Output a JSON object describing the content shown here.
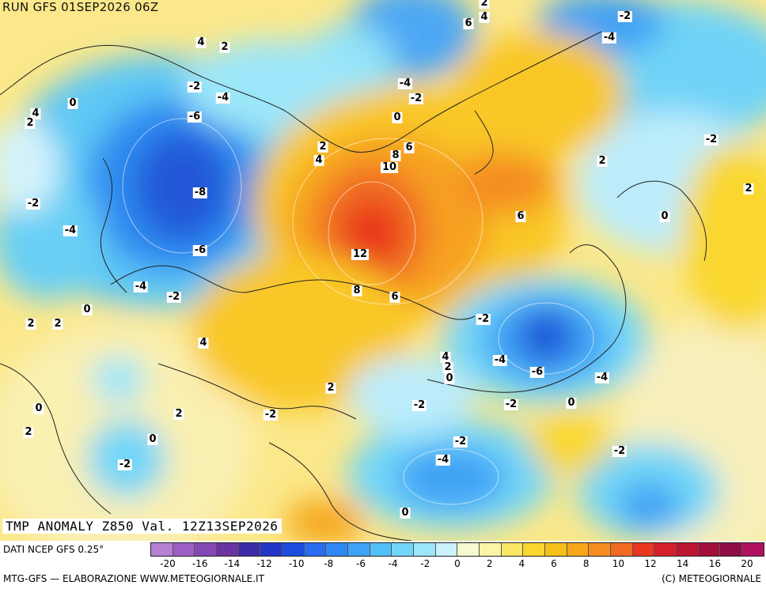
{
  "run_title": "RUN GFS 01SEP2026 06Z",
  "map_caption": "TMP ANOMALY Z850 Val. 12Z13SEP2026",
  "source_text": "DATI NCEP GFS 0.25°",
  "credit_left": "MTG-GFS — ELABORAZIONE WWW.METEOGIORNALE.IT",
  "credit_right": "(C) METEOGIORNALE",
  "legend": {
    "colors": [
      "#b57fd2",
      "#9d5fc4",
      "#8547b3",
      "#6b33a2",
      "#3d2ca8",
      "#2436c6",
      "#1b4ee0",
      "#2a6cf0",
      "#2f87f3",
      "#3fa2f5",
      "#53bff7",
      "#72d6f8",
      "#9ce6f9",
      "#c9f2fb",
      "#f6fbcf",
      "#fbf3a6",
      "#fbe665",
      "#f9d72f",
      "#f7c018",
      "#f6a81a",
      "#f48c20",
      "#f06a22",
      "#e9361f",
      "#d51f2b",
      "#bd1633",
      "#a50f3b",
      "#8f0d45",
      "#b0105e"
    ],
    "ticks": [
      "-20",
      "-16",
      "-14",
      "-12",
      "-10",
      "-8",
      "-6",
      "-4",
      "-2",
      "0",
      "2",
      "4",
      "6",
      "8",
      "10",
      "12",
      "14",
      "16",
      "20"
    ]
  },
  "map_labels": [
    "4",
    "2",
    "0",
    "-2",
    "-4",
    "-6",
    "-8",
    "-6",
    "-2",
    "-4",
    "-4",
    "0",
    "-2",
    "2",
    "2",
    "4",
    "2",
    "4",
    "6",
    "2",
    "-2",
    "-4",
    "-2",
    "0",
    "2",
    "2",
    "4",
    "8",
    "10",
    "6",
    "12",
    "8",
    "6",
    "6",
    "4",
    "2",
    "-2",
    "-4",
    "-6",
    "-2",
    "4",
    "2",
    "0",
    "-2",
    "-4",
    "-6",
    "-4",
    "0",
    "-2",
    "-2",
    "-4",
    "-2",
    "0",
    "2",
    "0",
    "2",
    "0",
    "2",
    "-2",
    "-2",
    "0"
  ],
  "icons": [
    "contour-map-icon"
  ]
}
